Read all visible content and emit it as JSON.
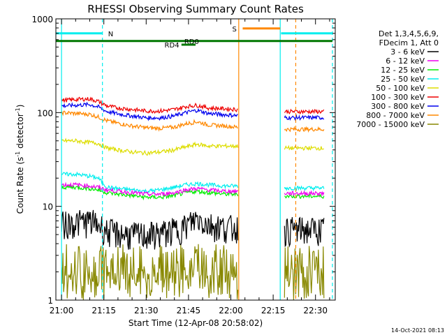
{
  "chart_data": {
    "type": "line",
    "title": "RHESSI Observing Summary Count Rates",
    "xlabel": "Start Time (12-Apr-08 20:58:02)",
    "ylabel_main": "Count Rate (s",
    "ylabel_sup1": "-1",
    "ylabel_mid": " detector",
    "ylabel_sup2": "-1",
    "ylabel_end": ")",
    "yscale": "log",
    "ylim": [
      1,
      1000
    ],
    "xlim_minutes": [
      -2,
      97
    ],
    "x_tick_minutes": [
      0,
      15,
      30,
      45,
      60,
      75,
      90
    ],
    "x_tick_labels": [
      "21:00",
      "21:15",
      "21:30",
      "21:45",
      "22:00",
      "22:15",
      "22:30"
    ],
    "y_tick_values": [
      1,
      10,
      100,
      1000
    ],
    "y_tick_labels": [
      "1",
      "10",
      "100",
      "1000"
    ],
    "timestamp": "14-Oct-2021 08:13",
    "legend_header": [
      "Det 1,3,4,5,6,9,",
      "FDecim 1, Att 0"
    ],
    "series": [
      {
        "name": "3 - 6 keV",
        "color": "#000000",
        "values": [
          6.5,
          6.8,
          7.0,
          6.5,
          5.5,
          5.2,
          5.0,
          5.0,
          5.2,
          5.6,
          6.2,
          7.5,
          6.5,
          6.0,
          6.0
        ]
      },
      {
        "name": "6 - 12 keV",
        "color": "#ee00ee",
        "values": [
          17,
          17,
          16.5,
          16,
          15,
          14.5,
          14,
          13.5,
          13.5,
          14,
          15,
          15.5,
          15,
          14.5,
          14.5
        ]
      },
      {
        "name": "12 - 25 keV",
        "color": "#00ee00",
        "values": [
          16,
          16,
          15.5,
          15,
          14,
          13.5,
          13,
          12.5,
          12.5,
          13,
          14,
          14.5,
          14,
          13.5,
          13.5
        ]
      },
      {
        "name": "25 - 50 keV",
        "color": "#00eeee",
        "values": [
          22,
          22,
          21,
          20,
          16,
          15.5,
          15,
          14.5,
          15,
          16,
          17,
          17.5,
          17,
          16.5,
          16.5
        ]
      },
      {
        "name": "50 - 100 keV",
        "color": "#dddd00",
        "values": [
          50,
          50,
          48,
          47,
          42,
          40,
          38,
          37,
          38,
          40,
          43,
          46,
          44,
          44,
          44
        ]
      },
      {
        "name": "100 - 300 keV",
        "color": "#ee0000",
        "values": [
          135,
          138,
          140,
          132,
          118,
          112,
          108,
          104,
          104,
          108,
          116,
          120,
          112,
          110,
          108
        ]
      },
      {
        "name": "300 - 800 keV",
        "color": "#0000ee",
        "values": [
          118,
          120,
          122,
          115,
          103,
          97,
          92,
          88,
          88,
          92,
          100,
          106,
          98,
          95,
          93
        ]
      },
      {
        "name": "800 - 7000 keV",
        "color": "#ff8800",
        "values": [
          100,
          98,
          96,
          90,
          82,
          77,
          72,
          69,
          68,
          70,
          76,
          80,
          74,
          72,
          70
        ]
      },
      {
        "name": "7000 - 15000 keV",
        "color": "#888800",
        "values": [
          2.0,
          2.0,
          2.0,
          2.0,
          2.0,
          2.0,
          2.0,
          2.0,
          2.0,
          2.0,
          2.0,
          2.0,
          2.0,
          2.0,
          2.0
        ]
      }
    ],
    "sample_minutes": [
      0,
      5,
      10,
      13,
      16,
      20,
      25,
      30,
      35,
      40,
      44,
      48,
      52,
      58,
      62
    ],
    "gaps_minutes": [
      [
        62.5,
        77.8
      ]
    ],
    "post_gap_minutes": [
      79,
      81,
      84,
      87,
      90,
      93
    ],
    "post_gap_factor": 0.95,
    "flag_bars": [
      {
        "label": "N",
        "color": "#00eeee",
        "segments": [
          [
            -2,
            14.5
          ],
          [
            77.8,
            96
          ]
        ],
        "level": 700,
        "label_at": 16.5
      },
      {
        "label": "S",
        "color": "#ff8800",
        "segments": [
          [
            64.2,
            77.5
          ]
        ],
        "level": 790,
        "label_at": 60.5
      },
      {
        "label": "RD0",
        "color": "#007700",
        "segments": [
          [
            -2,
            96
          ]
        ],
        "level": 580,
        "label_at": 43.5
      },
      {
        "label": "RD4",
        "color": "#007700",
        "segments": [
          [
            42.5,
            47.5
          ]
        ],
        "level": 530,
        "label_at": 36.5
      }
    ],
    "vlines": [
      {
        "minute": 0,
        "color": "#00eeee",
        "style": "solid"
      },
      {
        "minute": 14.5,
        "color": "#00eeee",
        "style": "dashed"
      },
      {
        "minute": 62.8,
        "color": "#ff8800",
        "style": "solid"
      },
      {
        "minute": 77.5,
        "color": "#00eeee",
        "style": "solid"
      },
      {
        "minute": 83.0,
        "color": "#ff8800",
        "style": "dashed"
      },
      {
        "minute": 96.0,
        "color": "#00eeee",
        "style": "dashed"
      }
    ]
  }
}
